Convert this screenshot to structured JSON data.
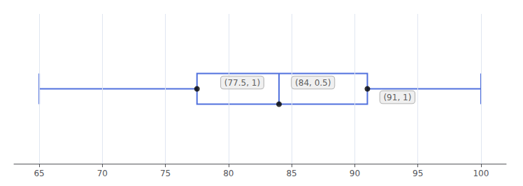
{
  "chart_data": {
    "type": "boxplot",
    "values": [
      65,
      77.5,
      84,
      91,
      100
    ],
    "annotations": [
      "(77.5, 1)",
      "(84, 0.5)",
      "(91, 1)"
    ],
    "xlim": [
      63,
      102
    ],
    "xticks": [
      65,
      70,
      75,
      80,
      85,
      90,
      95,
      100
    ],
    "grid": true,
    "tick_labels": "x"
  }
}
